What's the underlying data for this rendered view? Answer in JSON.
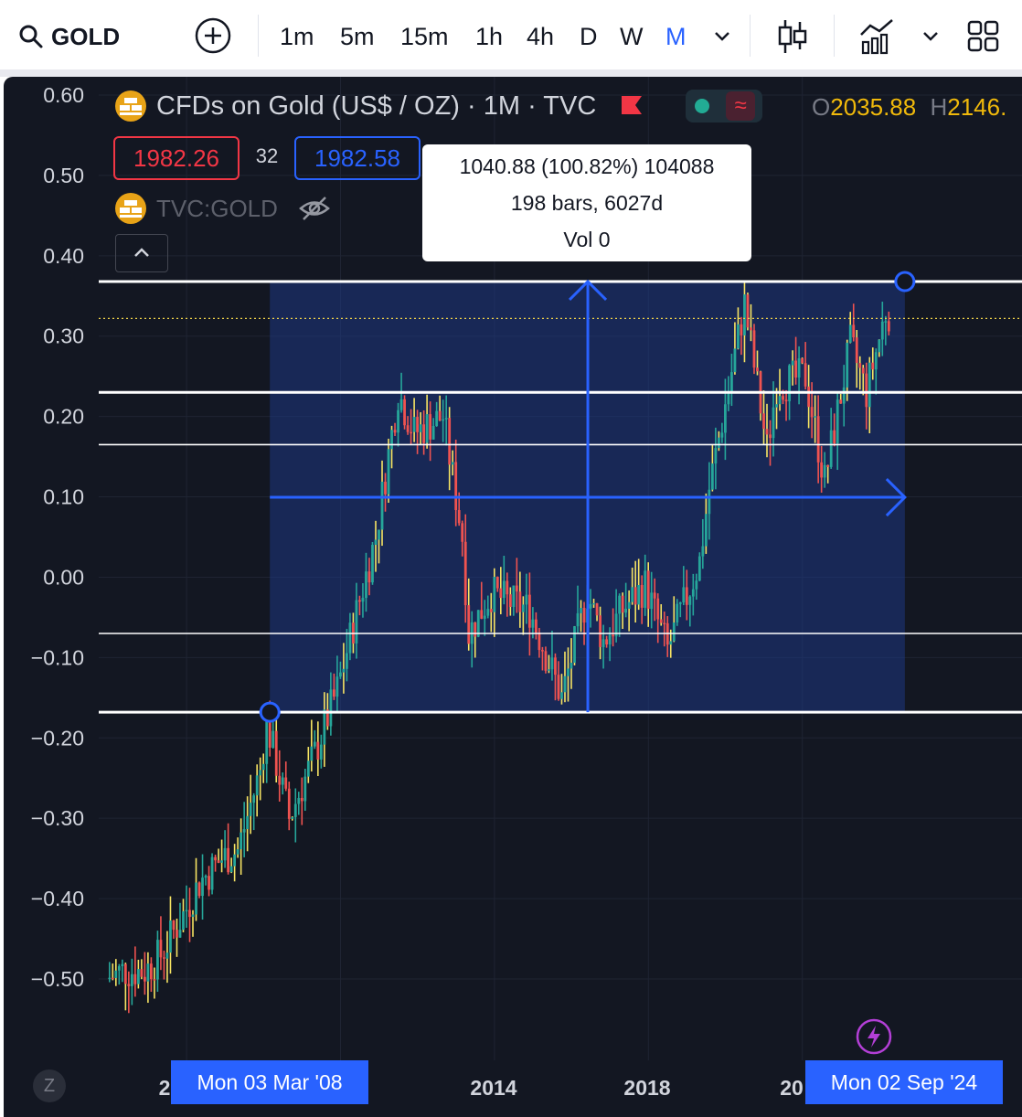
{
  "toolbar": {
    "symbol": "GOLD",
    "timeframes": [
      "1m",
      "5m",
      "15m",
      "1h",
      "4h",
      "D",
      "W",
      "M"
    ],
    "active_timeframe": "M"
  },
  "legend": {
    "title": "CFDs on Gold (US$ / OZ) · 1M · TVC",
    "open_label": "O",
    "open_value": "2035.88",
    "high_label": "H",
    "high_value": "2146.",
    "sell_price": "1982.26",
    "spread": "32",
    "buy_price": "1982.58",
    "compare_symbol": "TVC:GOLD"
  },
  "tooltip": {
    "line1": "1040.88 (100.82%) 104088",
    "line2": "198 bars, 6027d",
    "line3": "Vol 0"
  },
  "colors": {
    "background": "#131722",
    "up": "#26a69a",
    "down": "#ef5350",
    "wick_highlight": "#f7e463",
    "range_fill": "#1e3a8a",
    "measure": "#2962ff"
  },
  "chart_data": {
    "type": "candlestick",
    "y_axis_ticks": [
      "0.60",
      "0.50",
      "0.40",
      "0.30",
      "0.20",
      "0.10",
      "0.00",
      "−0.10",
      "−0.20",
      "−0.30",
      "−0.40",
      "−0.50"
    ],
    "x_axis_labels": [
      "2",
      "2014",
      "2018",
      "20"
    ],
    "ylim": [
      -0.6,
      0.6
    ],
    "measurement": {
      "start_date": "Mon 03 Mar '08",
      "end_date": "Mon 02 Sep '24",
      "start_value": -0.168,
      "end_value": 0.368,
      "change": "1040.88 (100.82%) 104088",
      "bars": "198 bars, 6027d"
    },
    "horizontal_levels": [
      0.368,
      0.23,
      0.165,
      -0.07,
      -0.168
    ],
    "current_price_level": 0.322,
    "path": [
      [
        "2004-01",
        -0.5
      ],
      [
        "2004-06",
        -0.49
      ],
      [
        "2005-01",
        -0.49
      ],
      [
        "2005-06",
        -0.47
      ],
      [
        "2006-01",
        -0.42
      ],
      [
        "2006-06",
        -0.38
      ],
      [
        "2007-01",
        -0.35
      ],
      [
        "2007-06",
        -0.34
      ],
      [
        "2008-01",
        -0.24
      ],
      [
        "2008-03",
        -0.18
      ],
      [
        "2008-10",
        -0.3
      ],
      [
        "2009-06",
        -0.22
      ],
      [
        "2010-01",
        -0.14
      ],
      [
        "2010-06",
        -0.06
      ],
      [
        "2011-01",
        0.05
      ],
      [
        "2011-08",
        0.23
      ],
      [
        "2012-01",
        0.18
      ],
      [
        "2012-10",
        0.2
      ],
      [
        "2013-04",
        0.05
      ],
      [
        "2013-06",
        -0.07
      ],
      [
        "2014-01",
        -0.02
      ],
      [
        "2014-06",
        -0.03
      ],
      [
        "2015-01",
        -0.04
      ],
      [
        "2015-11",
        -0.15
      ],
      [
        "2016-07",
        -0.02
      ],
      [
        "2016-12",
        -0.08
      ],
      [
        "2017-06",
        -0.04
      ],
      [
        "2018-01",
        -0.01
      ],
      [
        "2018-08",
        -0.09
      ],
      [
        "2019-06",
        0.02
      ],
      [
        "2019-09",
        0.11
      ],
      [
        "2020-08",
        0.34
      ],
      [
        "2021-03",
        0.16
      ],
      [
        "2021-06",
        0.24
      ],
      [
        "2022-03",
        0.25
      ],
      [
        "2022-09",
        0.12
      ],
      [
        "2023-05",
        0.29
      ],
      [
        "2023-10",
        0.23
      ],
      [
        "2024-04",
        0.33
      ]
    ]
  }
}
